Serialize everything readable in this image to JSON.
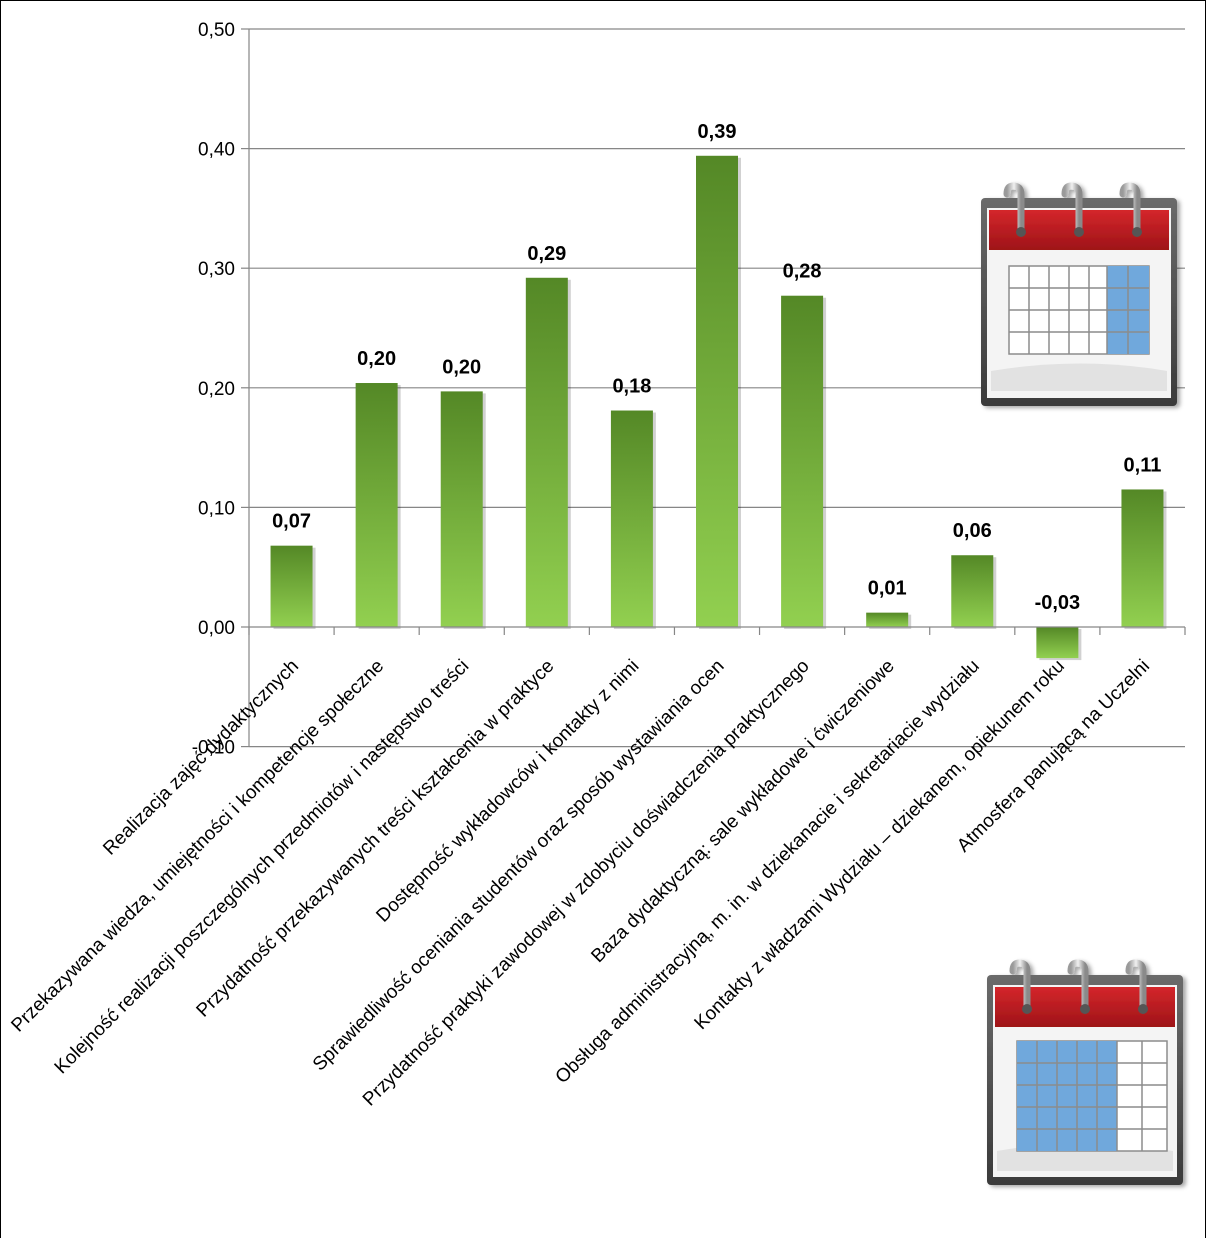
{
  "chart_data": {
    "type": "bar",
    "categories": [
      "Realizacja zajęć dydaktycznych",
      "Przekazywana wiedza, umiejętności  i kompetencje społeczne",
      "Kolejność realizacji poszczególnych przedmiotów i następstwo treści",
      "Przydatność przekazywanych treści kształcenia w praktyce",
      "Dostępność wykładowców i kontakty z nimi",
      "Sprawiedliwość oceniania studentów oraz sposób wystawiania ocen",
      "Przydatność praktyki zawodowej w zdobyciu doświadczenia praktycznego",
      "Baza dydaktyczną: sale wykładowe i ćwiczeniowe",
      "Obsługa administracyjną, m. in. w dziekanacie i sekretariacie wydziału",
      "Kontakty z władzami Wydziału – dziekanem, opiekunem roku",
      "Atmosfera panującą na Uczelni"
    ],
    "values": [
      0.068,
      0.204,
      0.197,
      0.292,
      0.181,
      0.394,
      0.277,
      0.012,
      0.06,
      -0.026,
      0.115
    ],
    "data_labels": [
      "0,07",
      "0,20",
      "0,20",
      "0,29",
      "0,18",
      "0,39",
      "0,28",
      "0,01",
      "0,06",
      "-0,03",
      "0,11"
    ],
    "y_ticks": [
      -0.1,
      0.0,
      0.1,
      0.2,
      0.3,
      0.4,
      0.5
    ],
    "y_tick_labels": [
      "-0,10",
      "0,00",
      "0,10",
      "0,20",
      "0,30",
      "0,40",
      "0,50"
    ],
    "ylim": [
      -0.1,
      0.5
    ],
    "title": "",
    "xlabel": "",
    "ylabel": "",
    "grid": true,
    "bar_color_top": "#548826",
    "bar_color_bottom": "#92d050",
    "gridline_color": "#868686",
    "decorations": [
      "calendar-icon",
      "calendar-icon"
    ]
  }
}
